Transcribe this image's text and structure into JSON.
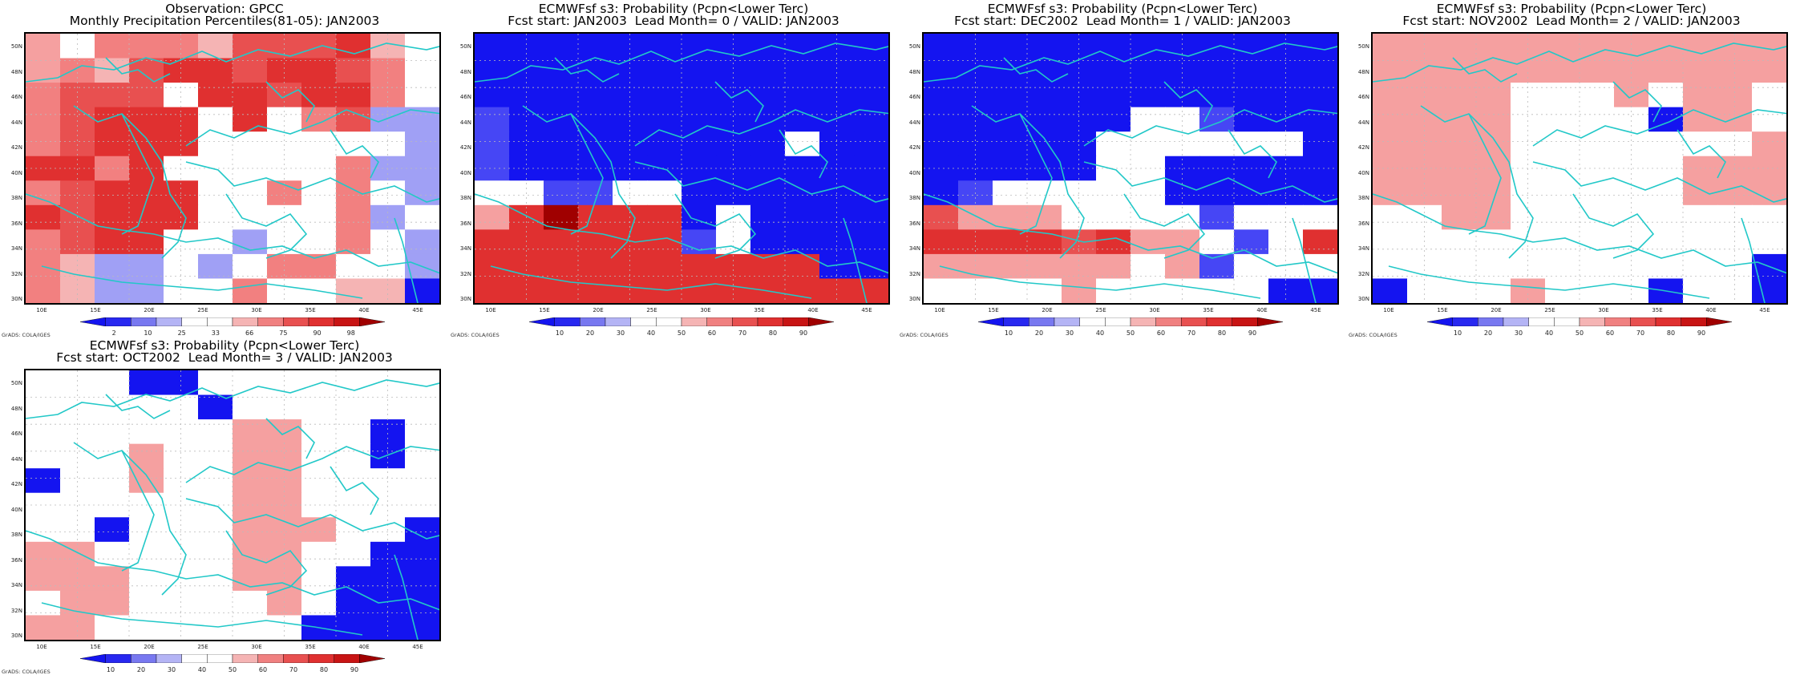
{
  "panels": [
    {
      "title_line1": "Observation: GPCC",
      "title_line2": "Monthly Precipitation Percentiles(81-05): JAN2003",
      "colorbar_labels": [
        "2",
        "10",
        "25",
        "33",
        "66",
        "75",
        "90",
        "98"
      ],
      "grid": [
        "PDdddbhhhjbW",
        "PdbhjjhjjhdW",
        "dhhhfjjhjjdW",
        "dhjjjWjfdhLL",
        "dhjjjWWWWfWL",
        "jjdjfWWWWdLL",
        "dhjjjWWdWdWL",
        "jhjjjWWWWdLW",
        "dhjjWWLWWdWL",
        "dbLLWLWddWWL",
        "dbLLWWdWWbbE"
      ]
    },
    {
      "title_line1": "ECMWFsf s3: Probability (Pcpn<Lower Terc)",
      "title_line2": "Fcst start: JAN2003  Lead Month= 0 / VALID: JAN2003",
      "colorbar_labels": [
        "10",
        "20",
        "30",
        "40",
        "50",
        "60",
        "70",
        "80",
        "90"
      ],
      "grid": [
        "EEEEEEEEEEEE",
        "EEEEEEEEEEEE",
        "EEEEEEEEEEEE",
        "FEEEEEEEEEEE",
        "FEEEEEEEEWEE",
        "FEEEEEEEEEEE",
        "WWFFWWEEEEEE",
        "PjRjjjEWEEEE",
        "jjjjjjFWEEEE",
        "jjjjjjjjjjEE",
        "jjjjjjjjjjjj"
      ]
    },
    {
      "title_line1": "ECMWFsf s3: Probability (Pcpn<Lower Terc)",
      "title_line2": "Fcst start: DEC2002  Lead Month= 1 / VALID: JAN2003",
      "colorbar_labels": [
        "10",
        "20",
        "30",
        "40",
        "50",
        "60",
        "70",
        "80",
        "90"
      ],
      "grid": [
        "EEEEEEEEEEEE",
        "EEEEEEEEEEEE",
        "EEEEEEEEEEEE",
        "EEEEEEWWFEEE",
        "EEEEEWWWWWWE",
        "EEEEEWWEEEEE",
        "EFWWWWWEEEEE",
        "hPPPWWWWFWWW",
        "jjjjhjPPWFWj",
        "PPPPPPWPFWWW",
        "WWWWPWWWWWEE"
      ]
    },
    {
      "title_line1": "ECMWFsf s3: Probability (Pcpn<Lower Terc)",
      "title_line2": "Fcst start: NOV2002  Lead Month= 2 / VALID: JAN2003",
      "colorbar_labels": [
        "10",
        "20",
        "30",
        "40",
        "50",
        "60",
        "70",
        "80",
        "90"
      ],
      "grid": [
        "PPPPPPPPPPPP",
        "PPPPPPPPPPPP",
        "PPPPWWWPWPPW",
        "PPPPWWWWEPPW",
        "PPPPWWWWWWWP",
        "PPPPWWWWWPPP",
        "PPPPWWWWWPPP",
        "WWPPWWWWWWWW",
        "WWWWWWWWWWWW",
        "WWWWWWWWWWWE",
        "EWWWPWWWEWWE"
      ]
    },
    {
      "title_line1": "ECMWFsf s3: Probability (Pcpn<Lower Terc)",
      "title_line2": "Fcst start: OCT2002  Lead Month= 3 / VALID: JAN2003",
      "colorbar_labels": [
        "10",
        "20",
        "30",
        "40",
        "50",
        "60",
        "70",
        "80",
        "90"
      ],
      "grid": [
        "WWWEEWWWWWWW",
        "WWWWWEWWWWWW",
        "WWWWWWPPWWEW",
        "WWWPWWPPWWEW",
        "EWWPWWPPWWWW",
        "WWWWWWPPWWWW",
        "WWEWWWPPPWWE",
        "PPWWWWPPWWEE",
        "PPPWWWPPWEEE",
        "WPPWWWWPWEEE",
        "PPWWWWWWEEEE"
      ]
    }
  ],
  "axis": {
    "lat_labels": [
      "50N",
      "48N",
      "46N",
      "44N",
      "42N",
      "40N",
      "38N",
      "36N",
      "34N",
      "32N",
      "30N"
    ],
    "lon_labels": [
      "10E",
      "15E",
      "20E",
      "25E",
      "30E",
      "35E",
      "40E",
      "45E"
    ]
  },
  "footer": "GrADS: COLA/IGES",
  "colors": {
    "E": "#1414f0",
    "F": "#4646f5",
    "L": "#a0a0f5",
    "W": "#ffffff",
    "P": "#f5a0a0",
    "d": "#f28080",
    "b": "#f5b4b4",
    "h": "#e85050",
    "j": "#e03030",
    "R": "#a00000",
    "coast": "#22c8c8",
    "bar_blue": [
      "#1414f0",
      "#2828f0",
      "#7878f0",
      "#b4b4f5"
    ],
    "bar_red": [
      "#f5b4b4",
      "#f08080",
      "#e85050",
      "#e03030",
      "#c81414",
      "#a00000"
    ]
  }
}
